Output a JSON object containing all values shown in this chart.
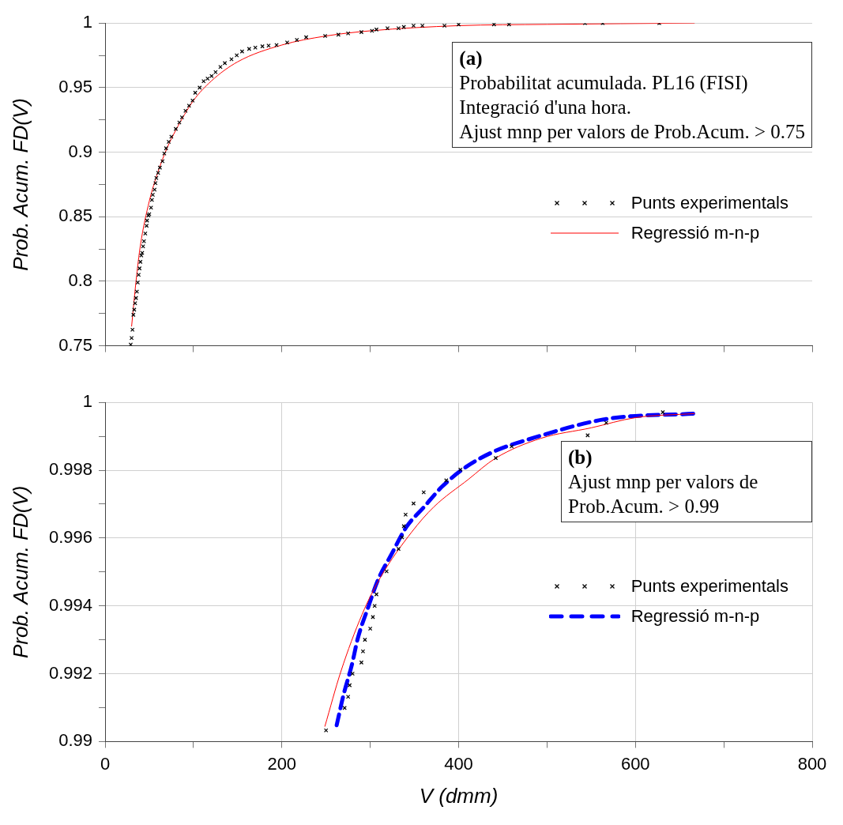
{
  "chart_data": [
    {
      "type": "scatter",
      "ylabel": "Prob. Acum. FD(V)",
      "xlim": [
        0,
        800
      ],
      "ylim": [
        0.75,
        1
      ],
      "xticks": [
        0,
        {
          "value": 100,
          "label": null
        },
        {
          "value": 200,
          "label": null
        },
        {
          "value": 300,
          "label": null
        },
        {
          "value": 400,
          "label": null
        },
        {
          "value": 500,
          "label": null
        },
        {
          "value": 600,
          "label": null
        },
        {
          "value": 700,
          "label": null
        },
        {
          "value": 800,
          "label": null
        }
      ],
      "yticks": [
        0.75,
        {
          "value": 0.775,
          "label": null
        },
        0.8,
        {
          "value": 0.825,
          "label": null
        },
        0.85,
        {
          "value": 0.875,
          "label": null
        },
        0.9,
        {
          "value": 0.925,
          "label": null
        },
        0.95,
        {
          "value": 0.975,
          "label": null
        },
        1
      ],
      "tick_labels": "y",
      "grid": true,
      "legend": "right",
      "annotations": [
        "(a)",
        "Probabilitat acumulada. PL16 (FISI)",
        "Integració d'una hora.",
        "Ajust mnp per valors de Prob.Acum. > 0.75"
      ],
      "series": [
        {
          "name": "Punts experimentals",
          "type": "scatter",
          "color": "#000000",
          "marker": "cross",
          "x": [
            29,
            30,
            31,
            32,
            33,
            34,
            35,
            36,
            37,
            38,
            39,
            40,
            41,
            42,
            43,
            44,
            45.5,
            47,
            47.5,
            49,
            50,
            52,
            53,
            54,
            56,
            57,
            58,
            60,
            62,
            65,
            67,
            69,
            72,
            75,
            80,
            84,
            87,
            91,
            95,
            99,
            102,
            107,
            111.5,
            116,
            120.5,
            125,
            130.5,
            135.5,
            143,
            149,
            155,
            163,
            170,
            178,
            185,
            194,
            206,
            217,
            227.5,
            249,
            264,
            275,
            290,
            302,
            307,
            319.5,
            332,
            338,
            349,
            359,
            384,
            400,
            440,
            457,
            543,
            563,
            627
          ],
          "values": [
            0.751,
            0.756,
            0.7625,
            0.774,
            0.778,
            0.783,
            0.787,
            0.792,
            0.799,
            0.805,
            0.81,
            0.815,
            0.82,
            0.822,
            0.827,
            0.831,
            0.837,
            0.843,
            0.847,
            0.851,
            0.852,
            0.857,
            0.863,
            0.867,
            0.871,
            0.876,
            0.88,
            0.884,
            0.888,
            0.893,
            0.899,
            0.903,
            0.908,
            0.912,
            0.918,
            0.923,
            0.927,
            0.932,
            0.936,
            0.94,
            0.946,
            0.95,
            0.955,
            0.957,
            0.959,
            0.962,
            0.966,
            0.969,
            0.972,
            0.975,
            0.978,
            0.98,
            0.981,
            0.982,
            0.9825,
            0.983,
            0.985,
            0.987,
            0.989,
            0.99,
            0.991,
            0.992,
            0.993,
            0.994,
            0.995,
            0.996,
            0.996,
            0.997,
            0.998,
            0.998,
            0.998,
            0.999,
            0.999,
            0.999,
            1,
            1,
            1
          ]
        },
        {
          "name": "Regressió m-n-p",
          "type": "line",
          "color": "#ff0000",
          "line_style": "solid",
          "marker": "none",
          "x": [
            30,
            35,
            40,
            50,
            60,
            70,
            80,
            100,
            120,
            150,
            200,
            250,
            300,
            400,
            500,
            667
          ],
          "values": [
            0.765,
            0.8,
            0.828,
            0.862,
            0.885,
            0.903,
            0.917,
            0.94,
            0.955,
            0.97,
            0.983,
            0.99,
            0.994,
            0.998,
            0.999,
            1
          ]
        }
      ]
    },
    {
      "type": "scatter",
      "xlabel": "V (dmm)",
      "ylabel": "Prob. Acum. FD(V)",
      "xlim": [
        0,
        800
      ],
      "ylim": [
        0.99,
        1
      ],
      "xticks": [
        0,
        {
          "value": 100,
          "label": null
        },
        200,
        {
          "value": 300,
          "label": null
        },
        400,
        {
          "value": 500,
          "label": null
        },
        600,
        {
          "value": 700,
          "label": null
        },
        800
      ],
      "yticks": [
        0.99,
        {
          "value": 0.991,
          "label": null
        },
        0.992,
        {
          "value": 0.993,
          "label": null
        },
        0.994,
        {
          "value": 0.995,
          "label": null
        },
        0.996,
        {
          "value": 0.997,
          "label": null
        },
        0.998,
        {
          "value": 0.999,
          "label": null
        },
        1
      ],
      "grid": true,
      "legend": "right",
      "annotations": [
        "(b)",
        "Ajust mnp per valors de Prob.Acum. > 0.99"
      ],
      "series": [
        {
          "name": "Punts experimentals",
          "type": "scatter",
          "color": "#000000",
          "marker": "cross",
          "x": [
            250,
            271,
            275,
            276.7,
            280,
            290,
            291.8,
            294,
            300,
            303,
            305,
            307,
            318.5,
            332,
            336,
            338,
            340,
            349,
            360.5,
            386,
            402,
            442,
            460,
            546,
            567,
            631
          ],
          "values": [
            0.99033,
            0.99099,
            0.99132,
            0.99166,
            0.992,
            0.99233,
            0.99266,
            0.993,
            0.99333,
            0.99367,
            0.994,
            0.99434,
            0.99502,
            0.99568,
            0.99602,
            0.99635,
            0.99669,
            0.99702,
            0.99735,
            0.9977,
            0.99802,
            0.99836,
            0.9987,
            0.99903,
            0.9994,
            0.99971
          ]
        },
        {
          "type": "line",
          "color": "#ff0000",
          "line_style": "solid",
          "marker": "none",
          "x": [
            248.6,
            266.7,
            290.8,
            312,
            347,
            372,
            411,
            441.5,
            493,
            550,
            600,
            667
          ],
          "values": [
            0.99044,
            0.99206,
            0.99375,
            0.99486,
            0.99618,
            0.99692,
            0.99773,
            0.99835,
            0.99894,
            0.99925,
            0.99955,
            0.99967
          ]
        },
        {
          "name": "Regressió m-n-p",
          "type": "line",
          "color": "#0000ff",
          "line_style": "dashed",
          "marker": "none",
          "x": [
            262,
            270,
            279,
            286,
            297,
            309,
            324,
            341,
            361,
            381,
            408,
            441.5,
            478,
            567,
            667
          ],
          "values": [
            0.99048,
            0.9914,
            0.99224,
            0.99305,
            0.99391,
            0.99478,
            0.99552,
            0.99633,
            0.99692,
            0.99751,
            0.99809,
            0.99857,
            0.9989,
            0.99951,
            0.99967
          ]
        }
      ]
    }
  ]
}
